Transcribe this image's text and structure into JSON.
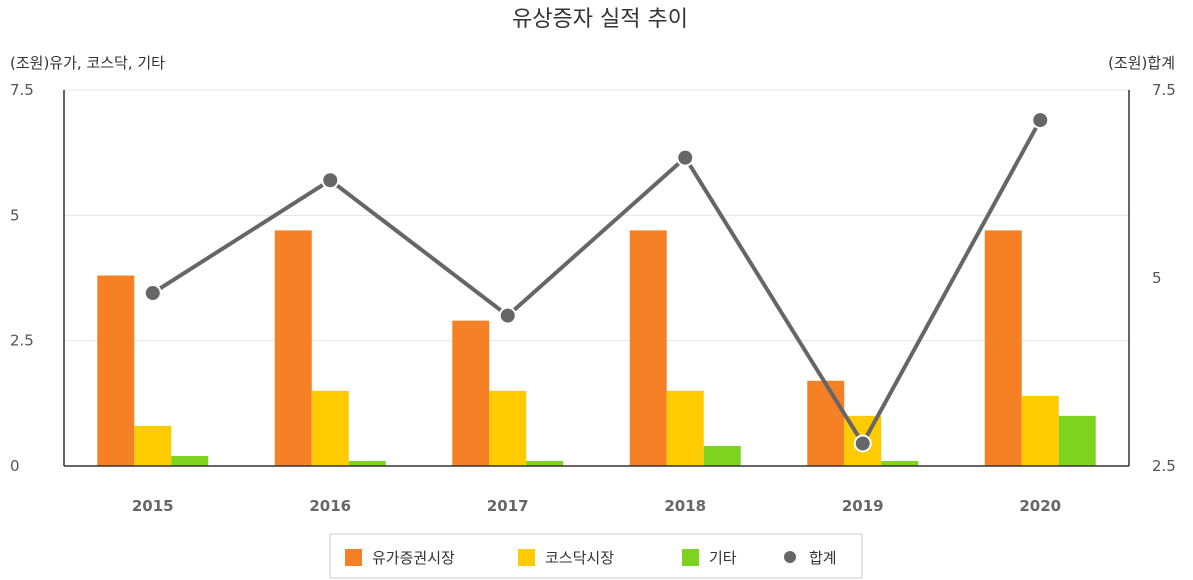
{
  "chart_data": {
    "type": "bar",
    "title": "유상증자 실적 추이",
    "y_left_label": "(조원)유가, 코스닥, 기타",
    "y_right_label": "(조원)합계",
    "y_left_ticks": [
      "0",
      "2.5",
      "5",
      "7.5"
    ],
    "y_right_ticks": [
      "2.5",
      "5",
      "7.5"
    ],
    "y_left_lim": [
      0,
      7.5
    ],
    "y_right_lim": [
      2.5,
      7.5
    ],
    "categories": [
      "2015",
      "2016",
      "2017",
      "2018",
      "2019",
      "2020"
    ],
    "series": [
      {
        "name": "유가증권시장",
        "type": "bar",
        "axis": "left",
        "color": "#f68026",
        "values": [
          3.8,
          4.7,
          2.9,
          4.7,
          1.7,
          4.7
        ]
      },
      {
        "name": "코스닥시장",
        "type": "bar",
        "axis": "left",
        "color": "#fecb00",
        "values": [
          0.8,
          1.5,
          1.5,
          1.5,
          1.0,
          1.4
        ]
      },
      {
        "name": "기타",
        "type": "bar",
        "axis": "left",
        "color": "#7ed321",
        "values": [
          0.2,
          0.1,
          0.1,
          0.4,
          0.1,
          1.0
        ]
      },
      {
        "name": "합계",
        "type": "line",
        "axis": "right",
        "color": "#666666",
        "values": [
          4.8,
          6.3,
          4.5,
          6.6,
          2.8,
          7.1
        ]
      }
    ],
    "grid": true,
    "legend_position": "bottom"
  }
}
